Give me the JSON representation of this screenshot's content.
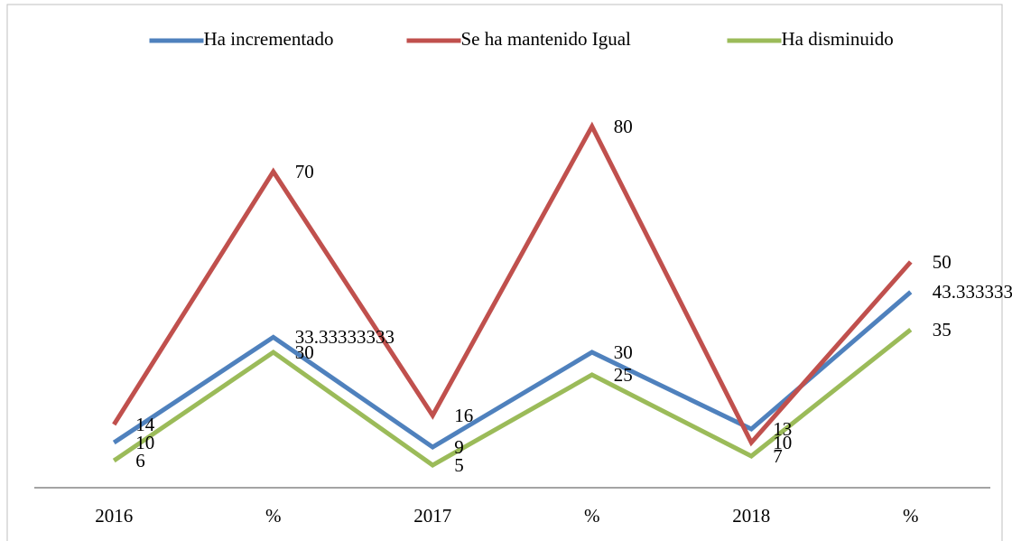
{
  "chart_data": {
    "type": "line",
    "categories": [
      "2016",
      "%",
      "2017",
      "%",
      "2018",
      "%"
    ],
    "series": [
      {
        "name": "Ha incrementado",
        "color": "#4f81bd",
        "values": [
          10,
          33.33333333,
          9,
          30,
          13,
          43.33333333
        ]
      },
      {
        "name": "Se ha mantenido Igual",
        "color": "#c0504d",
        "values": [
          14,
          70,
          16,
          80,
          10,
          50
        ]
      },
      {
        "name": "Ha disminuido",
        "color": "#9bbb59",
        "values": [
          6,
          30,
          5,
          25,
          7,
          35
        ]
      }
    ],
    "ylim": [
      0,
      90
    ],
    "legend": "top"
  }
}
